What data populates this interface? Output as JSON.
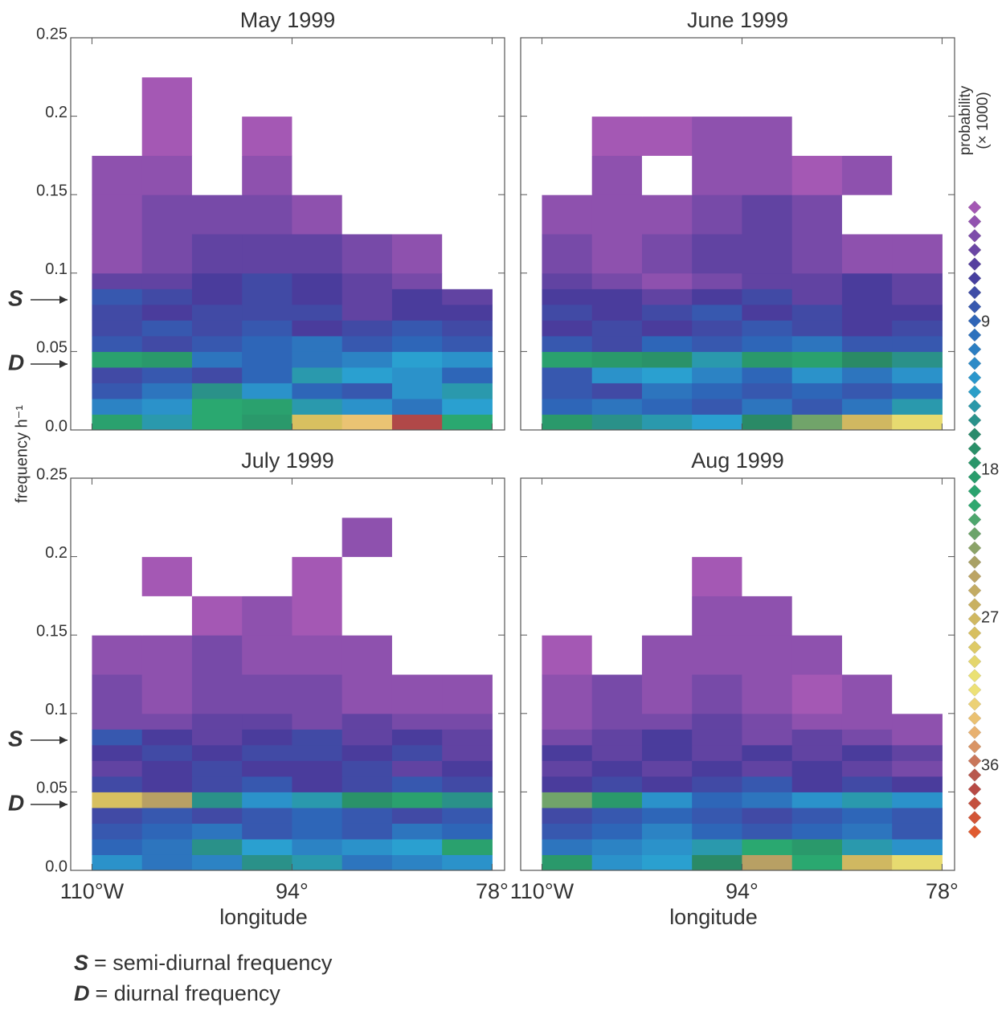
{
  "chart_data": [
    {
      "type": "heatmap",
      "title": "May 1999",
      "x": [
        -110,
        -106,
        -102,
        -98,
        -94,
        -90,
        -86,
        -82,
        -78
      ],
      "y": [
        0,
        0.01,
        0.02,
        0.03,
        0.04,
        0.05,
        0.06,
        0.07,
        0.08,
        0.09,
        0.1,
        0.125,
        0.15,
        0.175,
        0.2,
        0.225,
        0.25
      ],
      "z": [
        [
          19,
          14,
          20,
          18,
          28,
          33,
          37,
          20
        ],
        [
          11,
          12,
          20,
          19,
          14,
          12,
          10,
          13
        ],
        [
          8,
          10,
          15,
          12,
          9,
          8,
          12,
          14
        ],
        [
          7,
          8,
          7,
          9,
          14,
          13,
          12,
          9
        ],
        [
          19,
          18,
          10,
          9,
          10,
          11,
          13,
          12
        ],
        [
          8,
          7,
          8,
          9,
          10,
          8,
          9,
          8
        ],
        [
          7,
          8,
          7,
          8,
          6,
          7,
          8,
          7
        ],
        [
          7,
          6,
          7,
          7,
          7,
          5,
          6,
          6
        ],
        [
          8,
          7,
          6,
          7,
          6,
          5,
          6,
          5
        ],
        [
          5,
          5,
          6,
          7,
          6,
          5,
          4,
          1
        ],
        [
          3,
          4,
          5,
          5,
          5,
          4,
          3,
          0
        ],
        [
          3,
          4,
          4,
          4,
          3,
          1,
          0,
          0
        ],
        [
          3,
          3,
          0,
          3,
          0,
          0,
          0,
          0
        ],
        [
          0,
          2,
          0,
          2,
          0,
          0,
          0,
          0
        ],
        [
          0,
          2,
          0,
          0,
          0,
          0,
          0,
          0
        ],
        [
          0,
          0,
          0,
          0,
          0,
          0,
          0,
          0
        ]
      ],
      "xlim": [
        -111.7,
        -77
      ],
      "ylim": [
        0,
        0.25
      ],
      "xticks": [
        {
          "value": -110,
          "label": "110°W"
        },
        {
          "value": -94,
          "label": "94°"
        },
        {
          "value": -78,
          "label": "78°"
        }
      ],
      "yticks": [
        {
          "value": 0,
          "label": "0.0"
        },
        0.05,
        0.1,
        0.15,
        0.2,
        0.25
      ],
      "show_xtick_labels": false,
      "show_ytick_labels": true,
      "annotations": [
        {
          "text": "S",
          "y": 0.083
        },
        {
          "text": "D",
          "y": 0.042
        }
      ]
    },
    {
      "type": "heatmap",
      "title": "June 1999",
      "x": [
        -110,
        -106,
        -102,
        -98,
        -94,
        -90,
        -86,
        -82,
        -78
      ],
      "y": [
        0,
        0.01,
        0.02,
        0.03,
        0.04,
        0.05,
        0.06,
        0.07,
        0.08,
        0.09,
        0.1,
        0.125,
        0.15,
        0.175,
        0.2,
        0.225,
        0.25
      ],
      "z": [
        [
          18,
          15,
          14,
          13,
          16,
          22,
          27,
          30
        ],
        [
          9,
          10,
          9,
          8,
          10,
          8,
          10,
          14
        ],
        [
          8,
          7,
          10,
          9,
          8,
          9,
          8,
          9
        ],
        [
          8,
          12,
          13,
          11,
          9,
          12,
          10,
          12
        ],
        [
          19,
          18,
          17,
          14,
          18,
          19,
          16,
          15
        ],
        [
          8,
          7,
          9,
          8,
          9,
          10,
          8,
          8
        ],
        [
          6,
          7,
          6,
          7,
          8,
          7,
          6,
          7
        ],
        [
          7,
          6,
          7,
          8,
          6,
          7,
          6,
          6
        ],
        [
          6,
          6,
          5,
          6,
          7,
          5,
          6,
          5
        ],
        [
          5,
          4,
          3,
          4,
          5,
          5,
          6,
          5
        ],
        [
          4,
          3,
          4,
          5,
          5,
          4,
          3,
          3
        ],
        [
          3,
          3,
          3,
          4,
          5,
          4,
          0,
          0
        ],
        [
          0,
          3,
          0,
          3,
          3,
          2,
          3,
          0
        ],
        [
          0,
          2,
          2,
          3,
          3,
          0,
          0,
          0
        ],
        [
          0,
          0,
          0,
          0,
          0,
          0,
          0,
          0
        ],
        [
          0,
          0,
          0,
          0,
          0,
          0,
          0,
          0
        ]
      ],
      "xlim": [
        -111.7,
        -77
      ],
      "ylim": [
        0,
        0.25
      ],
      "xticks": [
        {
          "value": -110,
          "label": "110°W"
        },
        {
          "value": -94,
          "label": "94°"
        },
        {
          "value": -78,
          "label": "78°"
        }
      ],
      "yticks": [
        {
          "value": 0,
          "label": "0.0"
        },
        0.05,
        0.1,
        0.15,
        0.2,
        0.25
      ],
      "show_xtick_labels": false,
      "show_ytick_labels": false
    },
    {
      "type": "heatmap",
      "title": "July 1999",
      "xlabel": "longitude",
      "ylabel": "frequency h⁻¹",
      "x": [
        -110,
        -106,
        -102,
        -98,
        -94,
        -90,
        -86,
        -82,
        -78
      ],
      "y": [
        0,
        0.01,
        0.02,
        0.03,
        0.04,
        0.05,
        0.06,
        0.07,
        0.08,
        0.09,
        0.1,
        0.125,
        0.15,
        0.175,
        0.2,
        0.225,
        0.25
      ],
      "z": [
        [
          12,
          10,
          11,
          15,
          14,
          10,
          11,
          12
        ],
        [
          9,
          10,
          15,
          13,
          11,
          12,
          13,
          19
        ],
        [
          8,
          9,
          10,
          8,
          9,
          8,
          10,
          9
        ],
        [
          7,
          8,
          7,
          8,
          9,
          8,
          7,
          8
        ],
        [
          28,
          24,
          15,
          12,
          14,
          17,
          19,
          15
        ],
        [
          7,
          6,
          7,
          8,
          6,
          7,
          8,
          7
        ],
        [
          5,
          6,
          7,
          6,
          6,
          7,
          5,
          6
        ],
        [
          6,
          7,
          6,
          7,
          7,
          6,
          7,
          5
        ],
        [
          8,
          6,
          5,
          6,
          7,
          5,
          6,
          5
        ],
        [
          4,
          4,
          5,
          5,
          4,
          5,
          4,
          4
        ],
        [
          4,
          3,
          4,
          4,
          4,
          3,
          3,
          3
        ],
        [
          3,
          3,
          4,
          3,
          3,
          3,
          1,
          0
        ],
        [
          0,
          0,
          2,
          3,
          2,
          0,
          0,
          0
        ],
        [
          0,
          2,
          0,
          0,
          2,
          0,
          0,
          0
        ],
        [
          0,
          0,
          0,
          0,
          0,
          3,
          0,
          0
        ],
        [
          0,
          0,
          0,
          0,
          0,
          0,
          0,
          0
        ]
      ],
      "xlim": [
        -111.7,
        -77
      ],
      "ylim": [
        0,
        0.25
      ],
      "xticks": [
        {
          "value": -110,
          "label": "110°W"
        },
        {
          "value": -94,
          "label": "94°"
        },
        {
          "value": -78,
          "label": "78°"
        }
      ],
      "yticks": [
        {
          "value": 0,
          "label": "0.0"
        },
        0.05,
        0.1,
        0.15,
        0.2,
        0.25
      ],
      "show_xtick_labels": true,
      "show_ytick_labels": true,
      "annotations": [
        {
          "text": "S",
          "y": 0.083
        },
        {
          "text": "D",
          "y": 0.042
        }
      ]
    },
    {
      "type": "heatmap",
      "title": "Aug 1999",
      "xlabel": "longitude",
      "x": [
        -110,
        -106,
        -102,
        -98,
        -94,
        -90,
        -86,
        -82,
        -78
      ],
      "y": [
        0,
        0.01,
        0.02,
        0.03,
        0.04,
        0.05,
        0.06,
        0.07,
        0.08,
        0.09,
        0.1,
        0.125,
        0.15,
        0.175,
        0.2,
        0.225,
        0.25
      ],
      "z": [
        [
          18,
          12,
          13,
          16,
          24,
          20,
          27,
          30
        ],
        [
          10,
          11,
          12,
          14,
          20,
          18,
          14,
          12
        ],
        [
          8,
          9,
          11,
          9,
          8,
          9,
          10,
          8
        ],
        [
          7,
          8,
          9,
          8,
          7,
          8,
          9,
          8
        ],
        [
          22,
          18,
          12,
          9,
          10,
          12,
          14,
          12
        ],
        [
          6,
          7,
          6,
          7,
          8,
          6,
          7,
          6
        ],
        [
          5,
          6,
          5,
          6,
          5,
          6,
          5,
          4
        ],
        [
          6,
          5,
          6,
          5,
          6,
          5,
          6,
          5
        ],
        [
          4,
          5,
          6,
          5,
          4,
          5,
          4,
          3
        ],
        [
          3,
          4,
          4,
          5,
          4,
          3,
          3,
          3
        ],
        [
          3,
          4,
          3,
          4,
          3,
          2,
          3,
          0
        ],
        [
          2,
          0,
          3,
          3,
          3,
          3,
          0,
          0
        ],
        [
          0,
          0,
          0,
          3,
          3,
          0,
          0,
          0
        ],
        [
          0,
          0,
          0,
          2,
          0,
          0,
          0,
          0
        ],
        [
          0,
          0,
          0,
          0,
          0,
          0,
          0,
          0
        ],
        [
          0,
          0,
          0,
          0,
          0,
          0,
          0,
          0
        ]
      ],
      "xlim": [
        -111.7,
        -77
      ],
      "ylim": [
        0,
        0.25
      ],
      "xticks": [
        {
          "value": -110,
          "label": "110°W"
        },
        {
          "value": -94,
          "label": "94°"
        },
        {
          "value": -78,
          "label": "78°"
        }
      ],
      "yticks": [
        {
          "value": 0,
          "label": "0.0"
        },
        0.05,
        0.1,
        0.15,
        0.2,
        0.25
      ],
      "show_xtick_labels": true,
      "show_ytick_labels": false
    }
  ],
  "colorbar": {
    "title": [
      "probability",
      "(× 1000)"
    ],
    "zlim": [
      2,
      40
    ],
    "ticks": [
      9,
      18,
      27,
      36
    ],
    "colorscale": [
      [
        2,
        "#a458b4"
      ],
      [
        6,
        "#4a3c9c"
      ],
      [
        9,
        "#2e66b8"
      ],
      [
        13,
        "#2aa0d0"
      ],
      [
        16,
        "#2a8a66"
      ],
      [
        20,
        "#2aa870"
      ],
      [
        24,
        "#b8a064"
      ],
      [
        28,
        "#d8c060"
      ],
      [
        31,
        "#eee878"
      ],
      [
        34,
        "#e8b070"
      ],
      [
        37,
        "#b04848"
      ],
      [
        40,
        "#e05a30"
      ]
    ]
  },
  "notes": [
    {
      "symbol": "S",
      "text": "= semi-diurnal frequency"
    },
    {
      "symbol": "D",
      "text": "= diurnal frequency"
    }
  ]
}
